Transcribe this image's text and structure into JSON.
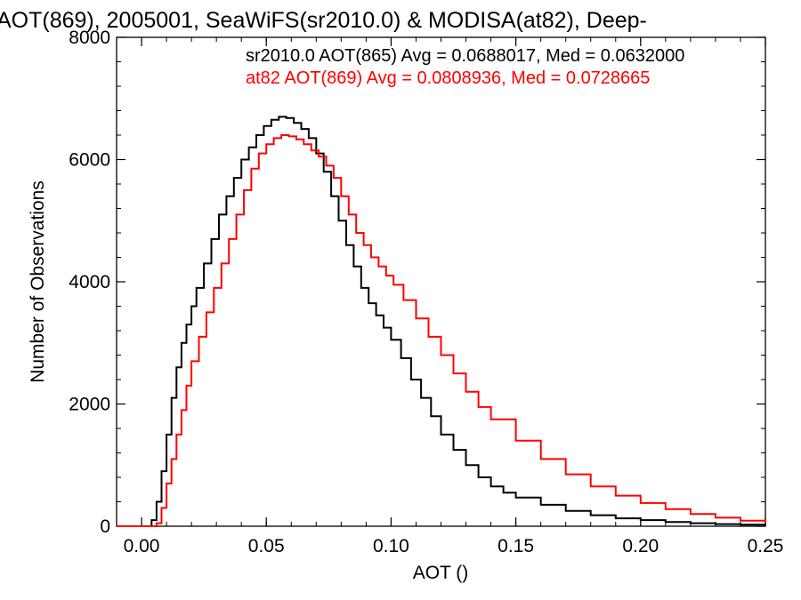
{
  "chart_data": {
    "type": "line",
    "title": "AOT(869), 2005001, SeaWiFS(sr2010.0) & MODISA(at82), Deep-",
    "xlabel": "AOT ()",
    "ylabel": "Number of Observations",
    "xlim": [
      -0.01,
      0.25
    ],
    "ylim": [
      0,
      8000
    ],
    "xticks": [
      0.0,
      0.05,
      0.1,
      0.15,
      0.2,
      0.25
    ],
    "xtick_labels": [
      "0.00",
      "0.05",
      "0.10",
      "0.15",
      "0.20",
      "0.25"
    ],
    "yticks": [
      0,
      2000,
      4000,
      6000,
      8000
    ],
    "ytick_labels": [
      "0",
      "2000",
      "4000",
      "6000",
      "8000"
    ],
    "grid": false,
    "legend_position": "top-right",
    "annotations": [
      {
        "text": "sr2010.0 AOT(865) Avg = 0.0688017, Med = 0.0632000",
        "color": "#000000"
      },
      {
        "text": "at82 AOT(869) Avg = 0.0808936, Med = 0.0728665",
        "color": "#ff0000"
      }
    ],
    "series": [
      {
        "color": "#000000",
        "step": true,
        "x": [
          -0.01,
          0.0,
          0.003,
          0.004,
          0.006,
          0.008,
          0.01,
          0.012,
          0.014,
          0.016,
          0.018,
          0.02,
          0.022,
          0.025,
          0.028,
          0.031,
          0.034,
          0.037,
          0.04,
          0.043,
          0.046,
          0.049,
          0.052,
          0.055,
          0.058,
          0.061,
          0.064,
          0.067,
          0.07,
          0.073,
          0.076,
          0.079,
          0.082,
          0.085,
          0.088,
          0.091,
          0.094,
          0.097,
          0.1,
          0.104,
          0.108,
          0.112,
          0.116,
          0.12,
          0.125,
          0.13,
          0.135,
          0.14,
          0.145,
          0.15,
          0.16,
          0.17,
          0.18,
          0.19,
          0.2,
          0.21,
          0.22,
          0.23,
          0.24,
          0.25
        ],
        "y": [
          0,
          0,
          0,
          100,
          400,
          900,
          1500,
          2100,
          2600,
          3000,
          3300,
          3600,
          3900,
          4300,
          4700,
          5100,
          5400,
          5700,
          6000,
          6200,
          6400,
          6550,
          6650,
          6700,
          6680,
          6600,
          6500,
          6350,
          6100,
          5800,
          5400,
          5000,
          4600,
          4250,
          3900,
          3650,
          3450,
          3250,
          3050,
          2750,
          2400,
          2100,
          1800,
          1500,
          1250,
          1000,
          800,
          650,
          550,
          470,
          350,
          250,
          180,
          130,
          100,
          70,
          50,
          35,
          25,
          15
        ]
      },
      {
        "color": "#ff0000",
        "step": true,
        "x": [
          -0.01,
          0.0,
          0.004,
          0.006,
          0.008,
          0.01,
          0.012,
          0.014,
          0.016,
          0.018,
          0.02,
          0.023,
          0.026,
          0.029,
          0.032,
          0.035,
          0.038,
          0.041,
          0.044,
          0.047,
          0.05,
          0.053,
          0.056,
          0.059,
          0.062,
          0.065,
          0.068,
          0.071,
          0.074,
          0.077,
          0.08,
          0.083,
          0.086,
          0.089,
          0.092,
          0.095,
          0.098,
          0.101,
          0.105,
          0.11,
          0.115,
          0.12,
          0.125,
          0.13,
          0.135,
          0.14,
          0.15,
          0.16,
          0.17,
          0.18,
          0.19,
          0.2,
          0.21,
          0.22,
          0.23,
          0.24,
          0.25
        ],
        "y": [
          0,
          0,
          0,
          50,
          300,
          700,
          1100,
          1500,
          1900,
          2300,
          2700,
          3100,
          3500,
          3900,
          4300,
          4700,
          5100,
          5500,
          5850,
          6100,
          6250,
          6350,
          6400,
          6380,
          6330,
          6250,
          6150,
          6050,
          5900,
          5700,
          5400,
          5100,
          4800,
          4600,
          4400,
          4250,
          4100,
          3950,
          3700,
          3400,
          3100,
          2800,
          2500,
          2200,
          1950,
          1750,
          1400,
          1100,
          850,
          650,
          500,
          380,
          280,
          200,
          140,
          90,
          50
        ]
      }
    ]
  }
}
